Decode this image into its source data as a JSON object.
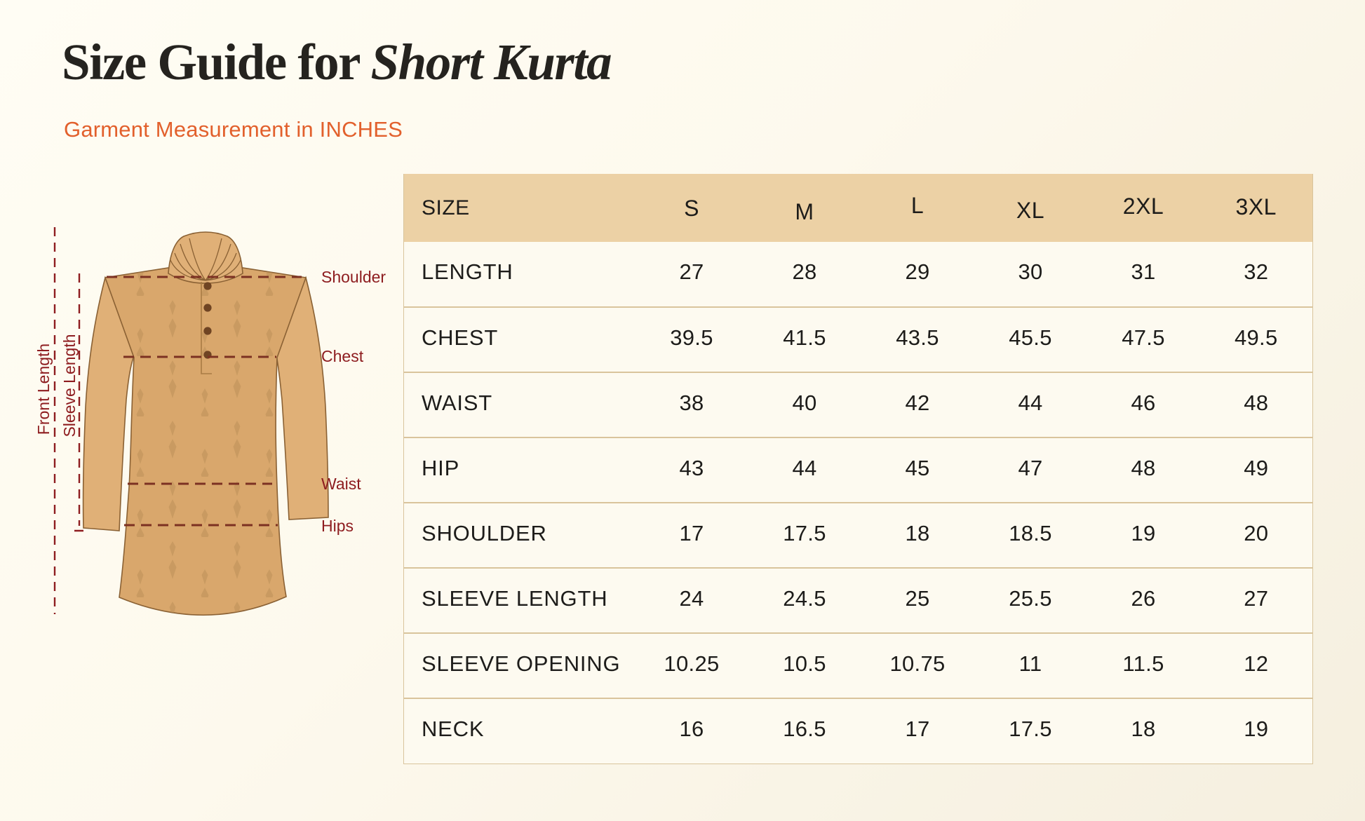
{
  "header": {
    "title_regular": "Size Guide for ",
    "title_italic": "Short Kurta",
    "subtitle": "Garment Measurement in INCHES"
  },
  "diagram": {
    "front_length": "Front Length",
    "sleeve_length": "Sleeve Length",
    "shoulder": "Shoulder",
    "chest": "Chest",
    "waist": "Waist",
    "hips": "Hips"
  },
  "colors": {
    "background": "#fdf9ed",
    "table_header_bg": "#ecd1a5",
    "table_row_bg": "#fdfaf0",
    "table_border": "#d9c49c",
    "title_text": "#25231f",
    "subtitle_accent": "#e2602c",
    "label_maroon": "#8e1d20",
    "dash_line": "#7c3122",
    "garment_main": "#d9a76c",
    "garment_sleeve": "#e0b077",
    "garment_pattern": "#b98e55",
    "garment_outline": "#8a6134",
    "button_brown": "#6f4423"
  },
  "chart_data": {
    "type": "table",
    "title": "Size Guide for Short Kurta",
    "subtitle": "Garment Measurement in INCHES",
    "columns": [
      "SIZE",
      "S",
      "M",
      "L",
      "XL",
      "2XL",
      "3XL"
    ],
    "rows": [
      {
        "label": "LENGTH",
        "values": [
          "27",
          "28",
          "29",
          "30",
          "31",
          "32"
        ]
      },
      {
        "label": "CHEST",
        "values": [
          "39.5",
          "41.5",
          "43.5",
          "45.5",
          "47.5",
          "49.5"
        ]
      },
      {
        "label": "WAIST",
        "values": [
          "38",
          "40",
          "42",
          "44",
          "46",
          "48"
        ]
      },
      {
        "label": "HIP",
        "values": [
          "43",
          "44",
          "45",
          "47",
          "48",
          "49"
        ]
      },
      {
        "label": "SHOULDER",
        "values": [
          "17",
          "17.5",
          "18",
          "18.5",
          "19",
          "20"
        ]
      },
      {
        "label": "SLEEVE LENGTH",
        "values": [
          "24",
          "24.5",
          "25",
          "25.5",
          "26",
          "27"
        ]
      },
      {
        "label": "SLEEVE OPENING",
        "values": [
          "10.25",
          "10.5",
          "10.75",
          "11",
          "11.5",
          "12"
        ]
      },
      {
        "label": "NECK",
        "values": [
          "16",
          "16.5",
          "17",
          "17.5",
          "18",
          "19"
        ]
      }
    ]
  }
}
